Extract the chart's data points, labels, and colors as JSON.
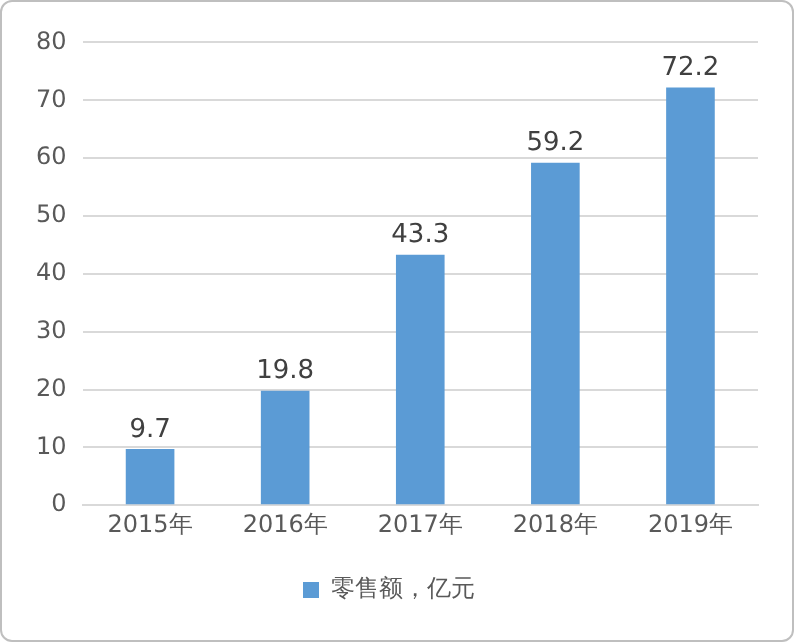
{
  "chart_data": {
    "type": "bar",
    "categories": [
      "2015年",
      "2016年",
      "2017年",
      "2018年",
      "2019年"
    ],
    "series": [
      {
        "name": "零售额，亿元",
        "color": "#5b9bd5",
        "values": [
          9.7,
          19.8,
          43.3,
          59.2,
          72.2
        ]
      }
    ],
    "ylim": [
      0,
      80
    ],
    "yticks": [
      0,
      10,
      20,
      30,
      40,
      50,
      60,
      70,
      80
    ],
    "grid": "y",
    "legend": "bottom",
    "data_labels": true
  }
}
